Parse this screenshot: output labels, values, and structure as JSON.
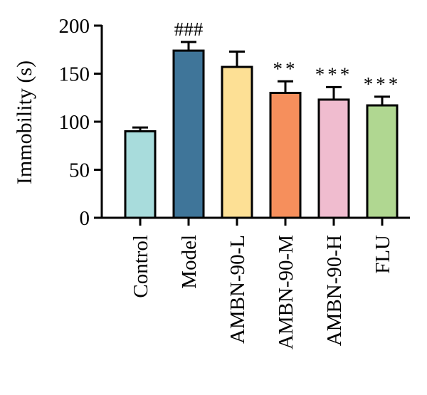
{
  "chart_data": {
    "type": "bar",
    "ylabel": "Immobility (s)",
    "xlabel": "",
    "ylim": [
      0,
      200
    ],
    "yticks": [
      0,
      50,
      100,
      150,
      200
    ],
    "categories": [
      "Control",
      "Model",
      "AMBN-90-L",
      "AMBN-90-M",
      "AMBN-90-H",
      "FLU"
    ],
    "values": [
      90,
      174,
      157,
      130,
      123,
      117
    ],
    "errors": [
      4,
      9,
      16,
      12,
      13,
      9
    ],
    "colors": [
      "#a8dcdc",
      "#3f7599",
      "#fde095",
      "#f68f5c",
      "#f0bccf",
      "#b0d791"
    ],
    "annotations": [
      "",
      "###",
      "",
      "**",
      "***",
      "***"
    ],
    "grid": false,
    "legend": "none"
  }
}
